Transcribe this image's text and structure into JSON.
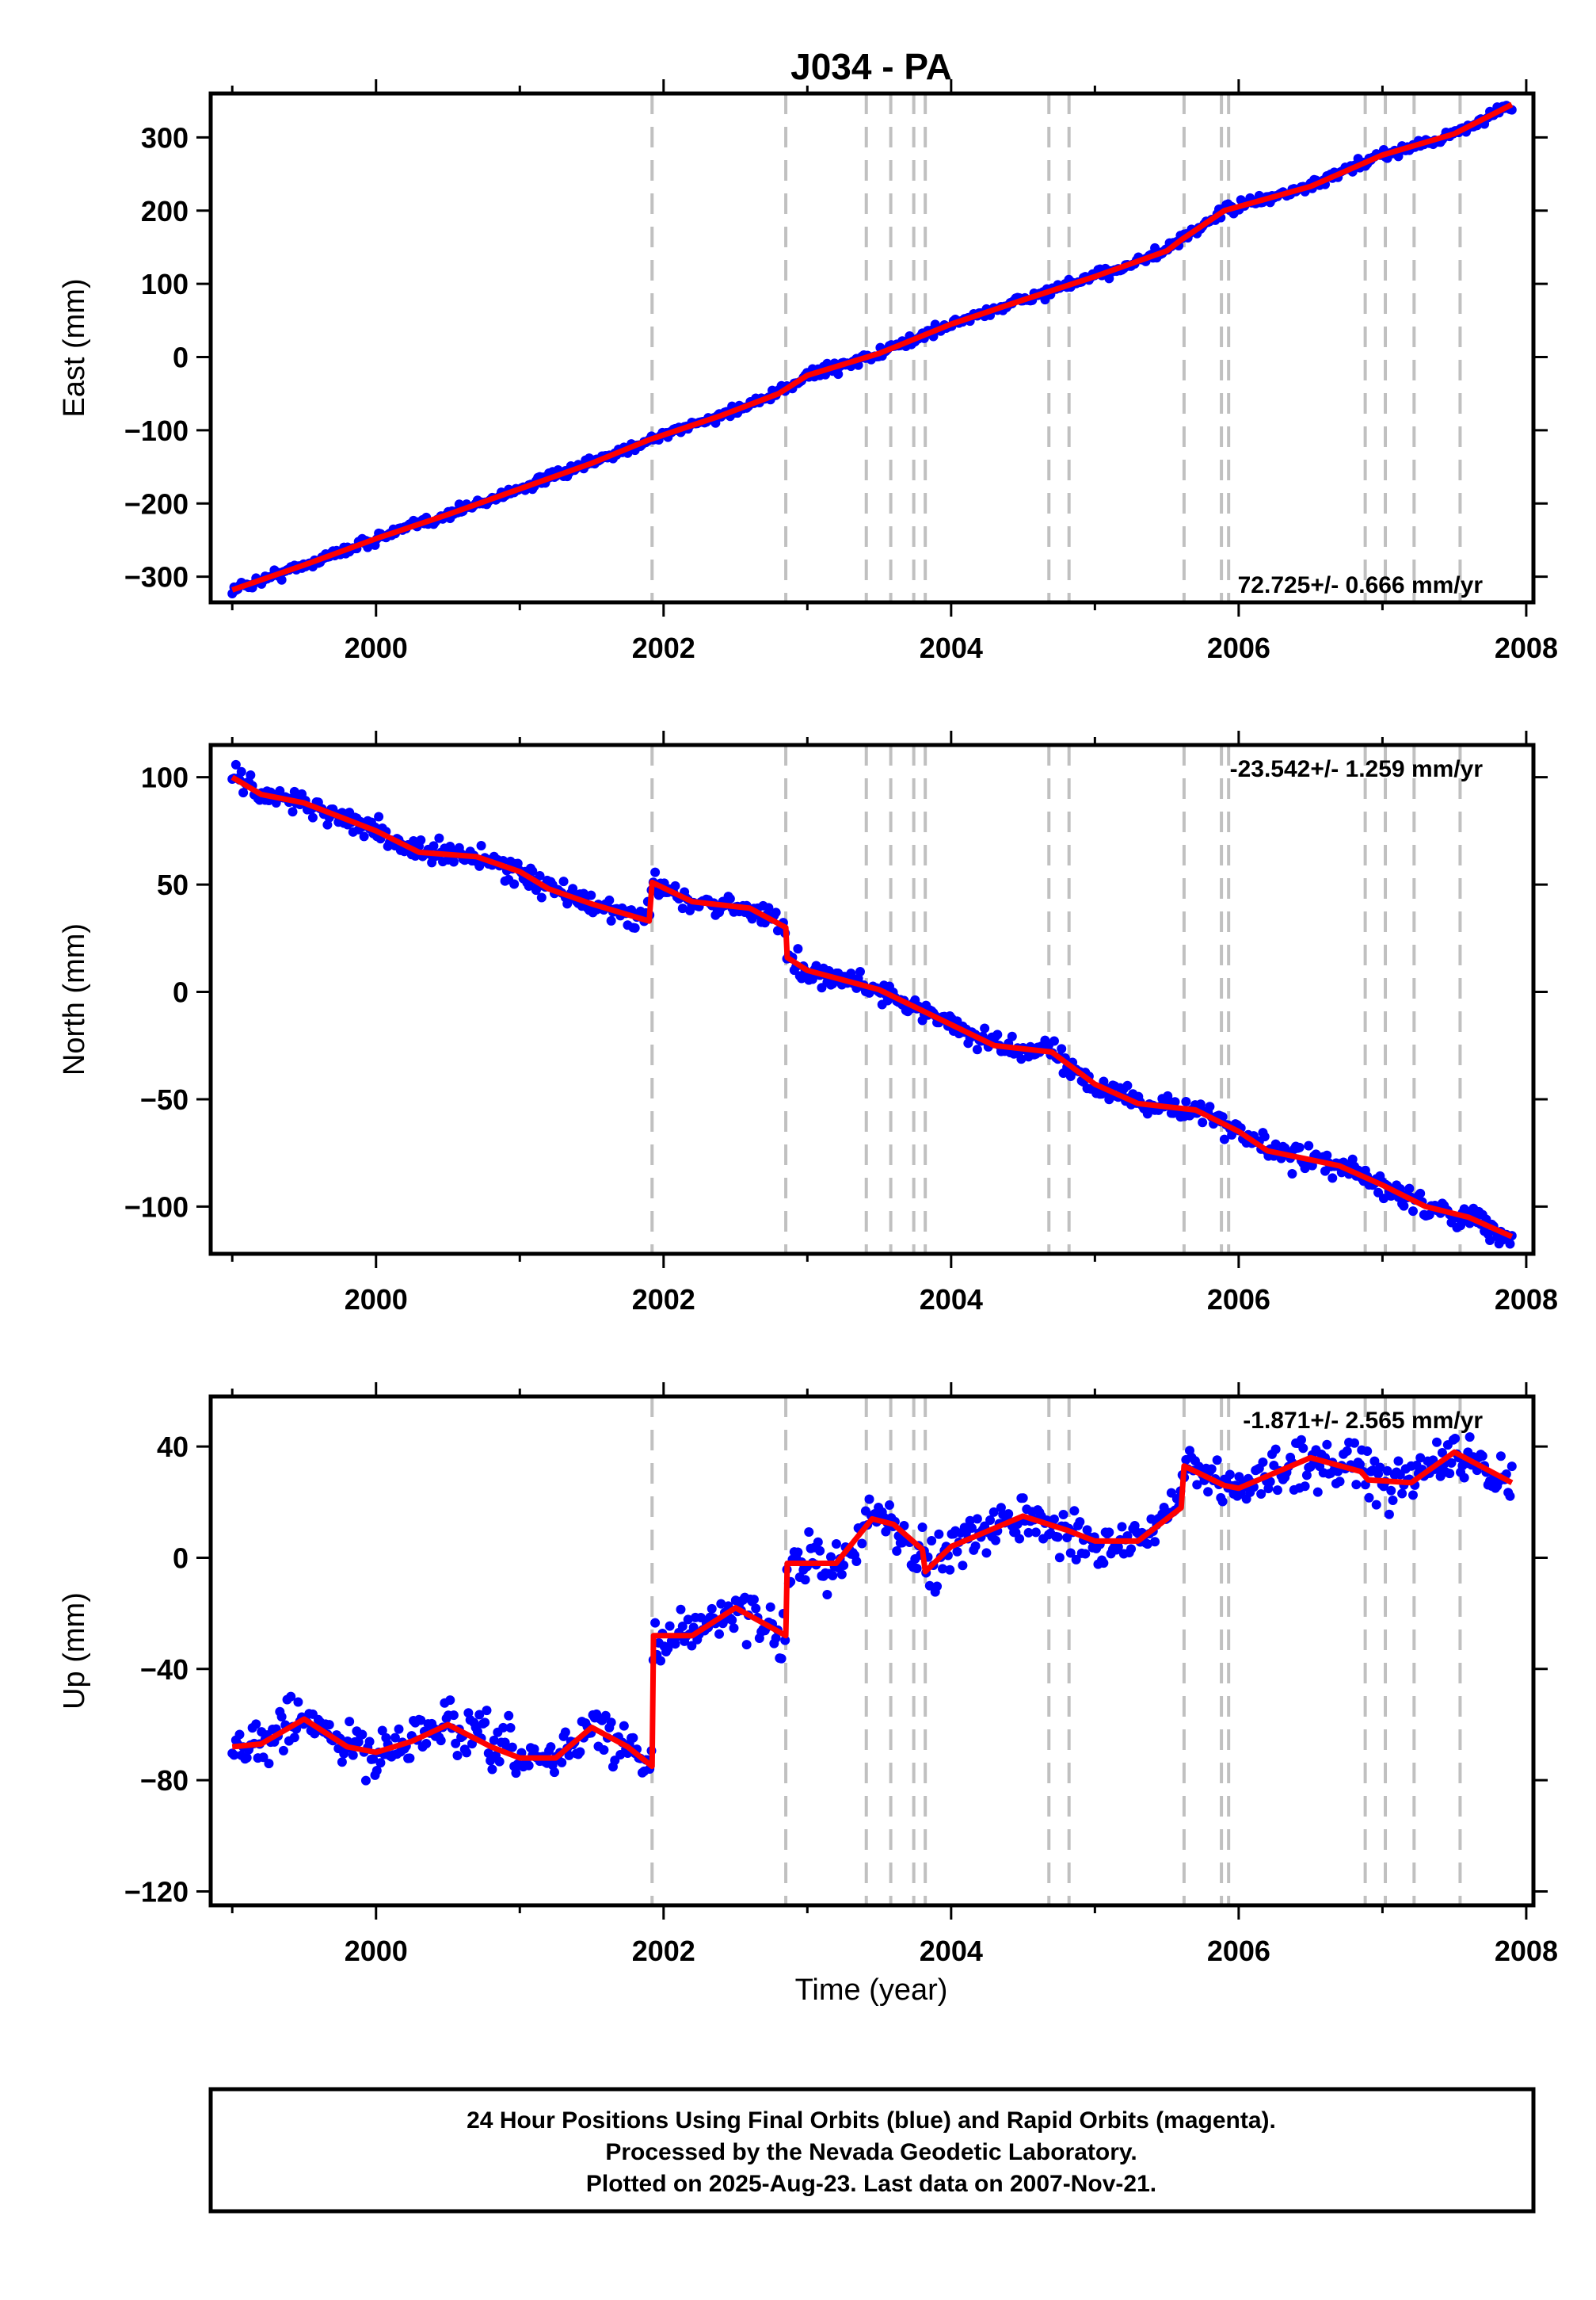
{
  "title": "J034 - PA",
  "xlabel": "Time (year)",
  "colors": {
    "final_points": "#0000ff",
    "model": "#ff0000",
    "events": "#c0c0c0",
    "frame": "#000000"
  },
  "caption": {
    "line1": "24 Hour Positions Using Final Orbits (blue) and Rapid Orbits (magenta).",
    "line2": "Processed by the Nevada Geodetic Laboratory.",
    "line3": "Plotted on 2025-Aug-23. Last data on 2007-Nov-21."
  },
  "chart_data": [
    {
      "type": "scatter",
      "component": "East",
      "ylabel": "East (mm)",
      "xlim": [
        1998.85,
        2008.05
      ],
      "ylim": [
        -335,
        360
      ],
      "xticks": [
        2000,
        2002,
        2004,
        2006,
        2008
      ],
      "yticks": [
        -300,
        -200,
        -100,
        0,
        100,
        200,
        300
      ],
      "rate_text": "72.725+/- 0.666 mm/yr",
      "rate_position": "bottom-right",
      "series": [
        {
          "name": "Final Orbits (blue)",
          "role": "data",
          "x": [
            1999.0,
            1999.5,
            2000.0,
            2000.5,
            2001.0,
            2001.5,
            2001.9,
            2002.4,
            2002.8,
            2003.0,
            2003.5,
            2004.0,
            2004.5,
            2005.0,
            2005.5,
            2005.6,
            2005.9,
            2006.5,
            2007.0,
            2007.5,
            2007.9
          ],
          "y": [
            -318,
            -284,
            -248,
            -215,
            -180,
            -145,
            -113,
            -80,
            -50,
            -25,
            5,
            45,
            78,
            110,
            145,
            160,
            200,
            233,
            276,
            305,
            345
          ]
        },
        {
          "role": "model",
          "x": [
            1999.0,
            1999.5,
            2000.0,
            2000.5,
            2001.0,
            2001.5,
            2001.9,
            2002.4,
            2002.8,
            2003.0,
            2003.5,
            2004.0,
            2004.5,
            2005.0,
            2005.5,
            2005.6,
            2005.9,
            2006.5,
            2007.0,
            2007.5,
            2007.9
          ],
          "y": [
            -318,
            -284,
            -248,
            -215,
            -180,
            -145,
            -113,
            -80,
            -50,
            -25,
            5,
            45,
            78,
            110,
            145,
            160,
            200,
            233,
            276,
            305,
            345
          ]
        }
      ]
    },
    {
      "type": "scatter",
      "component": "North",
      "ylabel": "North (mm)",
      "xlim": [
        1998.85,
        2008.05
      ],
      "ylim": [
        -122,
        115
      ],
      "xticks": [
        2000,
        2002,
        2004,
        2006,
        2008
      ],
      "yticks": [
        -100,
        -50,
        0,
        50,
        100
      ],
      "rate_text": "-23.542+/- 1.259 mm/yr",
      "rate_position": "top-right",
      "series": [
        {
          "name": "Final Orbits (blue)",
          "role": "data",
          "x": [
            1999.0,
            1999.2,
            1999.5,
            2000.0,
            2000.3,
            2000.7,
            2001.0,
            2001.2,
            2001.5,
            2001.9,
            2001.92,
            2002.2,
            2002.6,
            2002.85,
            2002.86,
            2003.0,
            2003.5,
            2003.9,
            2004.3,
            2004.7,
            2005.0,
            2005.3,
            2005.7,
            2006.0,
            2006.2,
            2006.7,
            2007.0,
            2007.3,
            2007.6,
            2007.9
          ],
          "y": [
            100,
            92,
            88,
            75,
            65,
            63,
            56,
            48,
            41,
            33,
            51,
            42,
            39,
            30,
            16,
            10,
            1,
            -12,
            -25,
            -28,
            -43,
            -52,
            -55,
            -65,
            -74,
            -81,
            -90,
            -100,
            -105,
            -114
          ]
        },
        {
          "role": "model",
          "x": [
            1999.0,
            1999.2,
            1999.5,
            2000.0,
            2000.3,
            2000.7,
            2001.0,
            2001.2,
            2001.5,
            2001.9,
            2001.92,
            2002.2,
            2002.6,
            2002.85,
            2002.86,
            2003.0,
            2003.5,
            2003.9,
            2004.3,
            2004.7,
            2005.0,
            2005.3,
            2005.7,
            2006.0,
            2006.2,
            2006.7,
            2007.0,
            2007.3,
            2007.6,
            2007.9
          ],
          "y": [
            100,
            92,
            88,
            75,
            65,
            63,
            56,
            48,
            41,
            33,
            51,
            42,
            39,
            30,
            16,
            10,
            1,
            -12,
            -25,
            -28,
            -43,
            -52,
            -55,
            -65,
            -74,
            -81,
            -90,
            -100,
            -105,
            -114
          ]
        }
      ]
    },
    {
      "type": "scatter",
      "component": "Up",
      "ylabel": "Up (mm)",
      "xlim": [
        1998.85,
        2008.05
      ],
      "ylim": [
        -125,
        58
      ],
      "xticks": [
        2000,
        2002,
        2004,
        2006,
        2008
      ],
      "yticks": [
        -120,
        -80,
        -40,
        0,
        40
      ],
      "rate_text": "-1.871+/- 2.565 mm/yr",
      "rate_position": "top-right",
      "series": [
        {
          "name": "Final Orbits (blue)",
          "role": "data",
          "x": [
            1999.0,
            1999.2,
            1999.5,
            1999.8,
            2000.0,
            2000.25,
            2000.5,
            2000.8,
            2001.0,
            2001.25,
            2001.5,
            2001.75,
            2001.92,
            2001.93,
            2002.2,
            2002.5,
            2002.85,
            2002.86,
            2003.2,
            2003.45,
            2003.6,
            2003.8,
            2003.82,
            2004.0,
            2004.5,
            2004.8,
            2005.0,
            2005.3,
            2005.6,
            2005.62,
            2005.9,
            2006.0,
            2006.5,
            2006.85,
            2006.9,
            2007.2,
            2007.5,
            2007.9
          ],
          "y": [
            -68,
            -67,
            -58,
            -68,
            -70,
            -66,
            -60,
            -68,
            -72,
            -72,
            -61,
            -68,
            -75,
            -28,
            -28,
            -18,
            -28,
            -2,
            -2,
            14,
            12,
            3,
            -5,
            4,
            15,
            10,
            6,
            6,
            18,
            33,
            26,
            25,
            36,
            31,
            28,
            27,
            38,
            27
          ]
        },
        {
          "role": "model",
          "x": [
            1999.0,
            1999.2,
            1999.5,
            1999.8,
            2000.0,
            2000.25,
            2000.5,
            2000.8,
            2001.0,
            2001.25,
            2001.5,
            2001.75,
            2001.92,
            2001.93,
            2002.2,
            2002.5,
            2002.85,
            2002.86,
            2003.2,
            2003.45,
            2003.6,
            2003.8,
            2003.82,
            2004.0,
            2004.5,
            2004.8,
            2005.0,
            2005.3,
            2005.6,
            2005.62,
            2005.9,
            2006.0,
            2006.5,
            2006.85,
            2006.9,
            2007.2,
            2007.5,
            2007.9
          ],
          "y": [
            -68,
            -67,
            -58,
            -68,
            -70,
            -66,
            -60,
            -68,
            -72,
            -72,
            -61,
            -68,
            -75,
            -28,
            -28,
            -18,
            -28,
            -2,
            -2,
            14,
            12,
            3,
            -5,
            4,
            15,
            10,
            6,
            6,
            18,
            33,
            26,
            25,
            36,
            31,
            28,
            27,
            38,
            27
          ]
        }
      ]
    }
  ],
  "event_lines": [
    2001.92,
    2002.85,
    2003.41,
    2003.58,
    2003.74,
    2003.82,
    2004.68,
    2004.82,
    2005.62,
    2005.88,
    2005.93,
    2006.88,
    2007.02,
    2007.22,
    2007.54
  ]
}
